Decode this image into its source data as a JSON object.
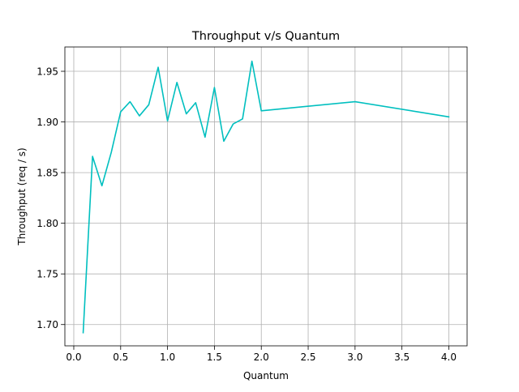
{
  "chart_data": {
    "type": "line",
    "title": "Throughput v/s Quantum",
    "xlabel": "Quantum",
    "ylabel": "Throughput (req / s)",
    "xlim": [
      -0.095,
      4.195
    ],
    "ylim": [
      1.679,
      1.974
    ],
    "x_ticks": [
      0.0,
      0.5,
      1.0,
      1.5,
      2.0,
      2.5,
      3.0,
      3.5,
      4.0
    ],
    "x_tick_labels": [
      "0.0",
      "0.5",
      "1.0",
      "1.5",
      "2.0",
      "2.5",
      "3.0",
      "3.5",
      "4.0"
    ],
    "y_ticks": [
      1.7,
      1.75,
      1.8,
      1.85,
      1.9,
      1.95
    ],
    "y_tick_labels": [
      "1.70",
      "1.75",
      "1.80",
      "1.85",
      "1.90",
      "1.95"
    ],
    "grid": true,
    "line_color": "#00bfbf",
    "series": [
      {
        "x": [
          0.1,
          0.2,
          0.3,
          0.4,
          0.5,
          0.6,
          0.7,
          0.8,
          0.9,
          1.0,
          1.1,
          1.2,
          1.3,
          1.4,
          1.5,
          1.6,
          1.7,
          1.8,
          1.9,
          2.0,
          3.0,
          4.0
        ],
        "values": [
          1.692,
          1.866,
          1.837,
          1.87,
          1.91,
          1.92,
          1.906,
          1.917,
          1.954,
          1.901,
          1.939,
          1.908,
          1.919,
          1.885,
          1.934,
          1.881,
          1.898,
          1.903,
          1.96,
          1.911,
          1.92,
          1.905
        ]
      }
    ]
  }
}
